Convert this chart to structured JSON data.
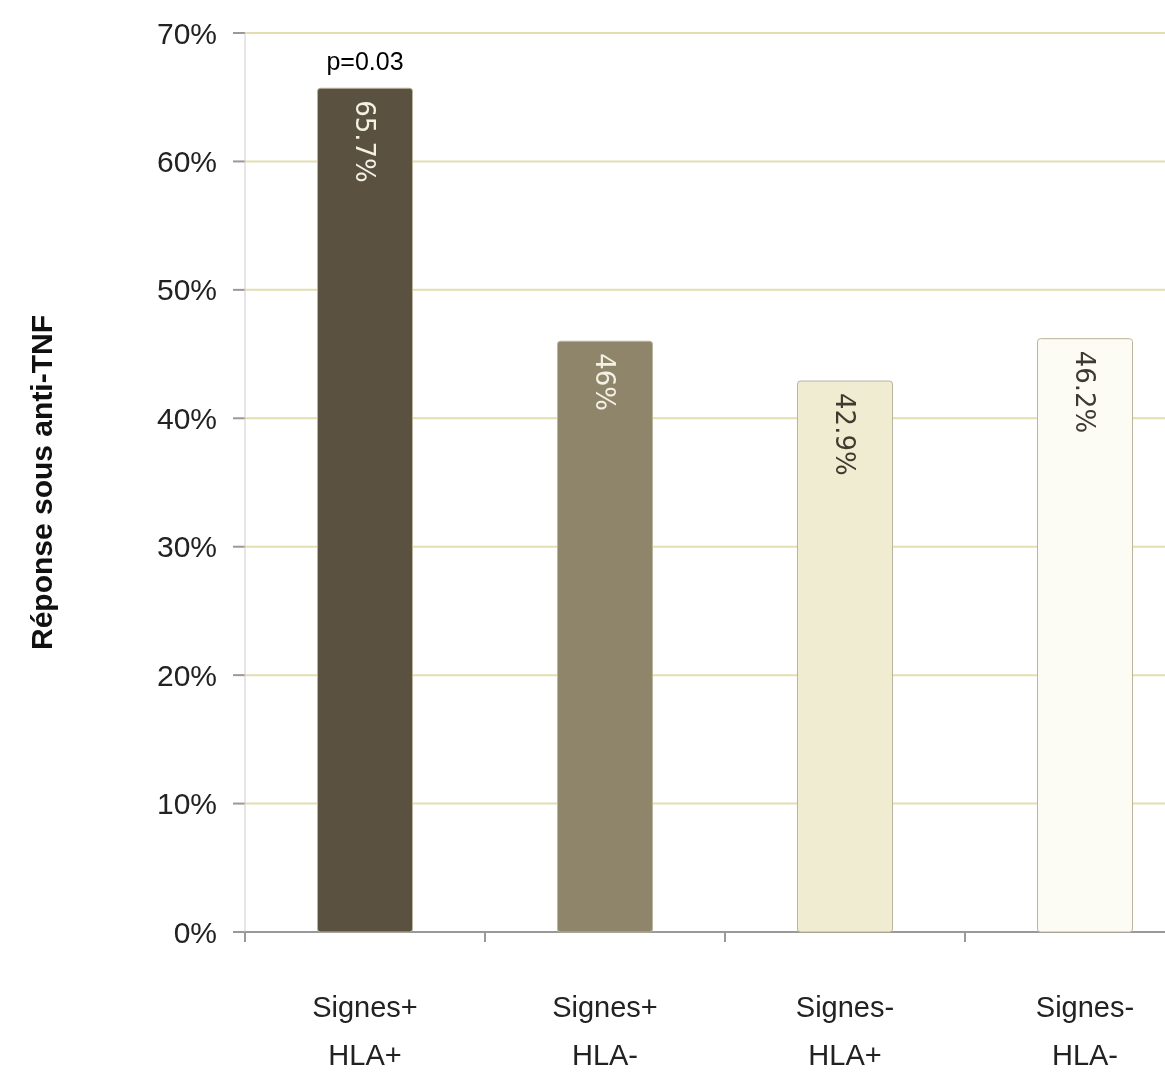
{
  "chart_data": {
    "type": "bar",
    "ylabel": "Réponse sous anti-TNF",
    "categories": [
      "Signes+\nHLA+",
      "Signes+\nHLA-",
      "Signes-\nHLA+",
      "Signes-\nHLA-"
    ],
    "values": [
      65.7,
      46,
      42.9,
      46.2
    ],
    "colors": [
      "#5a5141",
      "#8f856a",
      "#efecd2",
      "#fdfcf4"
    ],
    "value_labels": [
      "65.7%",
      "46%",
      "42.9%",
      "46.2%"
    ],
    "ylim": [
      0,
      70
    ],
    "yticks": [
      {
        "value": 0,
        "label": "0%"
      },
      {
        "value": 10,
        "label": "10%"
      },
      {
        "value": 20,
        "label": "20%"
      },
      {
        "value": 30,
        "label": "30%"
      },
      {
        "value": 40,
        "label": "40%"
      },
      {
        "value": 50,
        "label": "50%"
      },
      {
        "value": 60,
        "label": "60%"
      },
      {
        "value": 70,
        "label": "70%"
      }
    ],
    "grid": "y",
    "annotations": [
      {
        "text": "p=0.03",
        "x": "Signes+\nHLA+",
        "y": 65.7
      }
    ]
  }
}
